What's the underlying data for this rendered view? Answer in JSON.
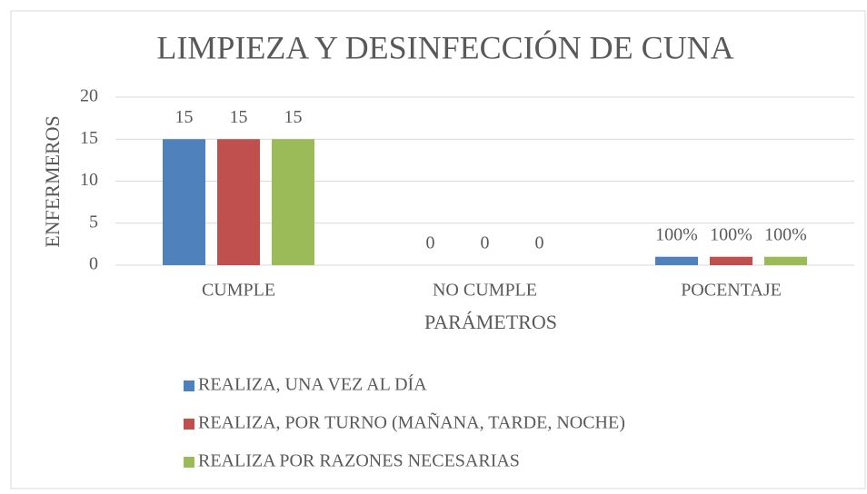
{
  "chart_data": {
    "type": "bar",
    "title": "LIMPIEZA Y DESINFECCIÓN DE CUNA",
    "x_label": "PARÁMETROS",
    "y_label": "ENFERMEROS",
    "categories": [
      "CUMPLE",
      "NO CUMPLE",
      "POCENTAJE"
    ],
    "series": [
      {
        "name": "REALIZA, UNA VEZ AL DÍA",
        "color": "#4f81bd",
        "values": [
          15,
          0,
          1
        ],
        "value_labels": [
          "15",
          "0",
          "100%"
        ]
      },
      {
        "name": "REALIZA, POR TURNO (MAÑANA, TARDE, NOCHE)",
        "color": "#c0504d",
        "values": [
          15,
          0,
          1
        ],
        "value_labels": [
          "15",
          "0",
          "100%"
        ]
      },
      {
        "name": "REALIZA POR RAZONES NECESARIAS",
        "color": "#9bbb59",
        "values": [
          15,
          0,
          1
        ],
        "value_labels": [
          "15",
          "0",
          "100%"
        ]
      }
    ],
    "ylim": [
      0,
      20
    ],
    "yticks": [
      0,
      5,
      10,
      15,
      20
    ],
    "grid": true,
    "legend": "bottom"
  }
}
